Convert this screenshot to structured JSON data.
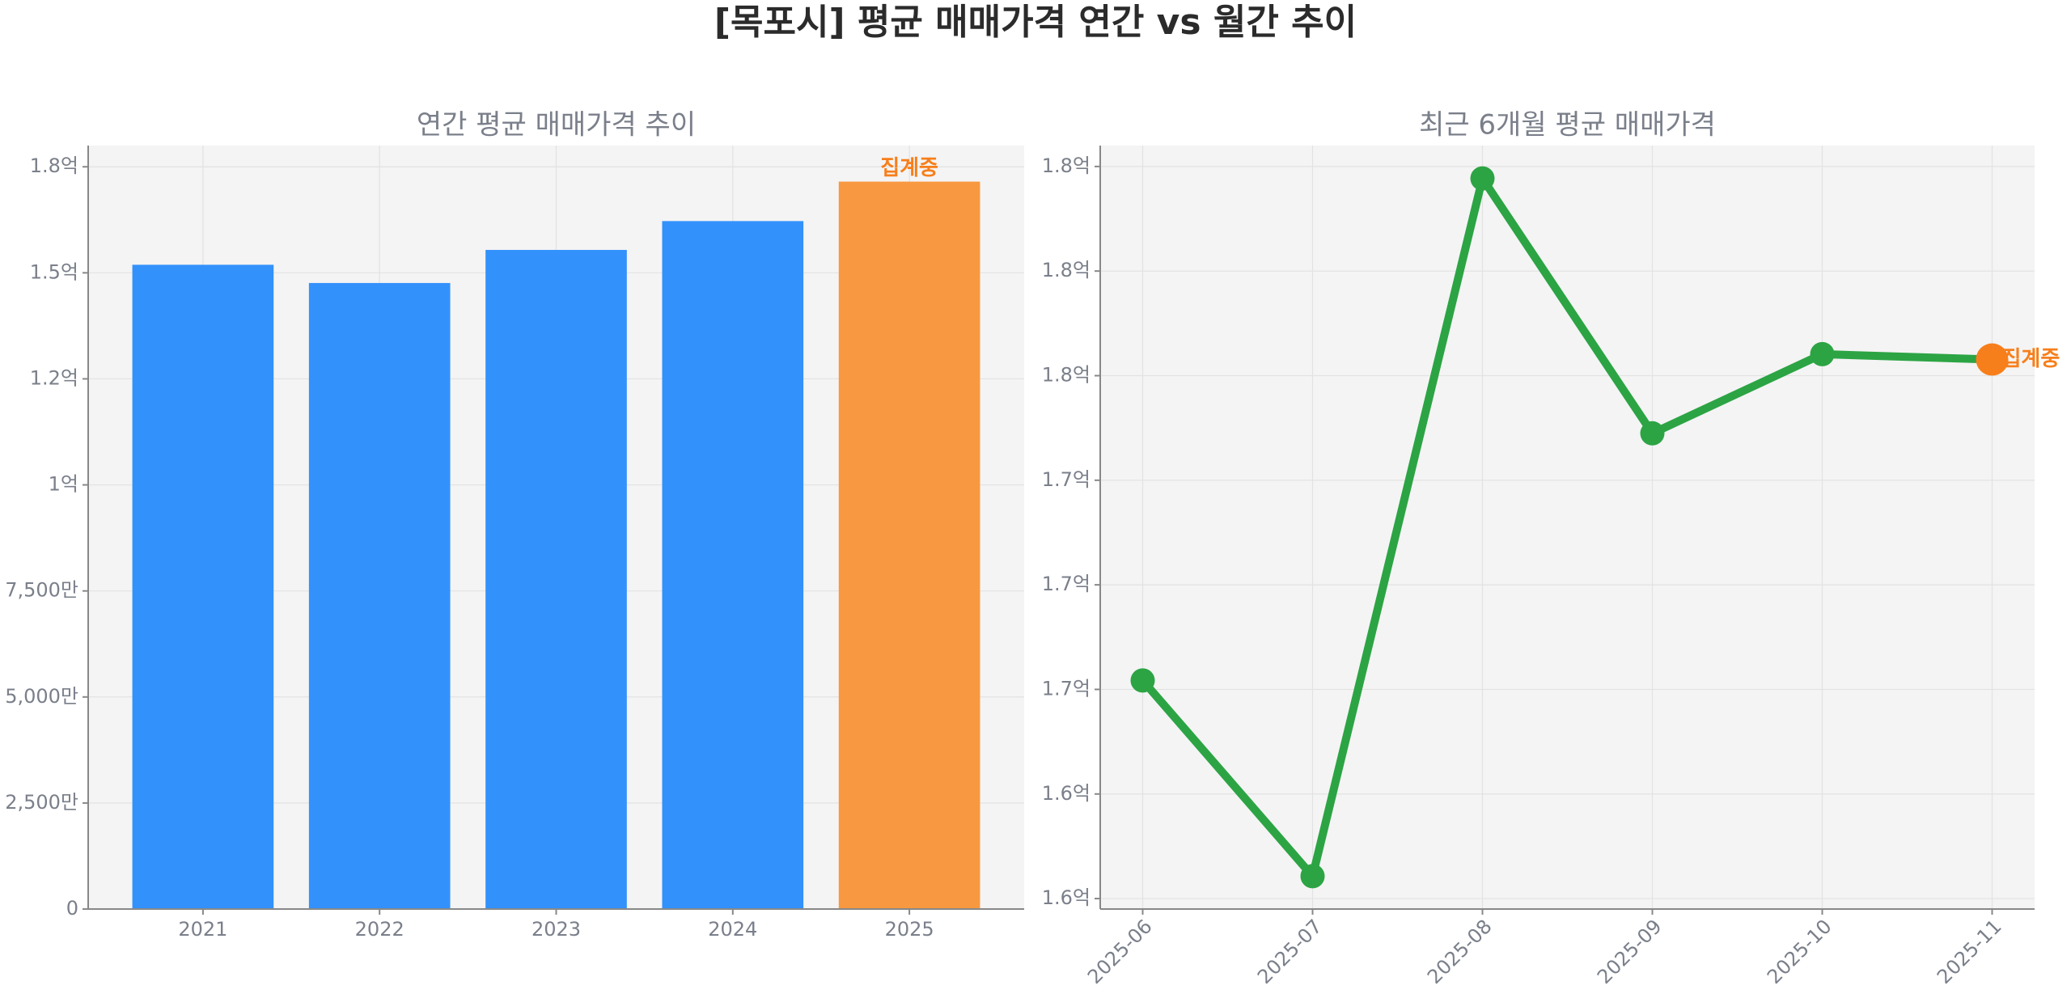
{
  "title": "[목포시] 평균 매매가격 연간 vs 월간 추이",
  "chart_data": [
    {
      "type": "bar",
      "title": "연간 평균 매매가격 추이",
      "categories": [
        "2021",
        "2022",
        "2023",
        "2024",
        "2025"
      ],
      "values": [
        151900000,
        147600000,
        155400000,
        162200000,
        171500000
      ],
      "colors": [
        "#3391fb",
        "#3391fb",
        "#3391fb",
        "#3391fb",
        "#f89840"
      ],
      "annotation": "집계중",
      "annotation_color": "#f77f1b",
      "ylim": [
        0,
        180000000
      ],
      "yticks": [
        0,
        {
          "value": 25000000,
          "label": "2,500만"
        },
        {
          "value": 50000000,
          "label": "5,000만"
        },
        {
          "value": 75000000,
          "label": "7,500만"
        },
        {
          "value": 100000000,
          "label": "1억"
        },
        {
          "value": 125000000,
          "label": "1.2억"
        },
        {
          "value": 150000000,
          "label": "1.5억"
        },
        {
          "value": 175000000,
          "label": "1.8억"
        }
      ],
      "grid": true
    },
    {
      "type": "line",
      "title": "최근 6개월 평균 매매가격",
      "categories": [
        "2025-06",
        "2025-07",
        "2025-08",
        "2025-09",
        "2025-10",
        "2025-11"
      ],
      "values": [
        166300000,
        159750000,
        183100000,
        174570000,
        177220000,
        177040000
      ],
      "color": "#2ca444",
      "point_colors": [
        "#2ca444",
        "#2ca444",
        "#2ca444",
        "#2ca444",
        "#2ca444",
        "#f77f1b"
      ],
      "annotation": "집계중",
      "annotation_color": "#f77f1b",
      "ylim": [
        158650000,
        184200000
      ],
      "yticks": [
        {
          "value": 159000000,
          "label": "1.6억"
        },
        {
          "value": 162500000,
          "label": "1.6억"
        },
        {
          "value": 166000000,
          "label": "1.7억"
        },
        {
          "value": 169500000,
          "label": "1.7억"
        },
        {
          "value": 173000000,
          "label": "1.7억"
        },
        {
          "value": 176500000,
          "label": "1.8억"
        },
        {
          "value": 180000000,
          "label": "1.8억"
        },
        {
          "value": 183500000,
          "label": "1.8억"
        }
      ],
      "grid": true
    }
  ]
}
